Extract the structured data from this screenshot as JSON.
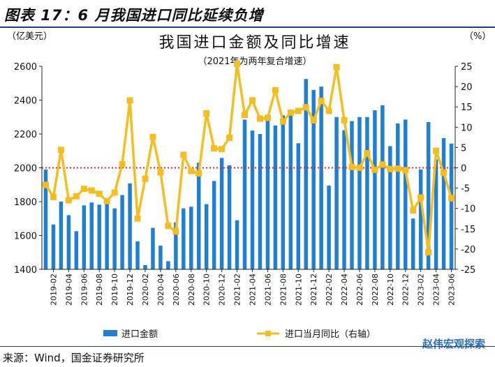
{
  "figure_label": "图表 17：6 月我国进口同比延续负增",
  "source_text": "来源：Wind，国金证券研究所",
  "watermark_text": "赵伟宏观探索",
  "colors": {
    "bar": "#1f7fd4",
    "line": "#f5bd1f",
    "zero_line": "#e0201a",
    "frame": "#1a3f7a"
  },
  "chart_data": {
    "type": "bar+line",
    "title": "我国进口金额及同比增速",
    "subtitle": "（2021年为两年复合增速）",
    "y_left_label": "（亿美元）",
    "y_right_label": "（%）",
    "y_left_lim": [
      1400,
      2600
    ],
    "y_left_ticks": [
      1400,
      1600,
      1800,
      2000,
      2200,
      2400,
      2600
    ],
    "y_right_lim": [
      -25,
      25
    ],
    "y_right_ticks": [
      25,
      20,
      15,
      10,
      5,
      0,
      -5,
      -10,
      -15,
      -20,
      -25
    ],
    "x_ticks": [
      "2019-02",
      "2019-04",
      "2019-06",
      "2019-08",
      "2019-10",
      "2019-12",
      "2020-02",
      "2020-04",
      "2020-06",
      "2020-08",
      "2020-10",
      "2020-12",
      "2021-02",
      "2021-04",
      "2021-06",
      "2021-08",
      "2021-10",
      "2021-12",
      "2022-02",
      "2022-04",
      "2022-06",
      "2022-08",
      "2022-10",
      "2022-12",
      "2023-02",
      "2023-04",
      "2023-06"
    ],
    "categories": [
      "2019-01",
      "2019-02",
      "2019-03",
      "2019-04",
      "2019-05",
      "2019-06",
      "2019-07",
      "2019-08",
      "2019-09",
      "2019-10",
      "2019-11",
      "2019-12",
      "2020-01",
      "2020-02",
      "2020-03",
      "2020-04",
      "2020-05",
      "2020-06",
      "2020-07",
      "2020-08",
      "2020-09",
      "2020-10",
      "2020-11",
      "2020-12",
      "2021-01",
      "2021-02",
      "2021-03",
      "2021-04",
      "2021-05",
      "2021-06",
      "2021-07",
      "2021-08",
      "2021-09",
      "2021-10",
      "2021-11",
      "2021-12",
      "2022-01",
      "2022-02",
      "2022-03",
      "2022-04",
      "2022-05",
      "2022-06",
      "2022-07",
      "2022-08",
      "2022-09",
      "2022-10",
      "2022-11",
      "2022-12",
      "2023-01",
      "2023-02",
      "2023-03",
      "2023-04",
      "2023-05",
      "2023-06"
    ],
    "series": [
      {
        "name": "进口金额",
        "axis": "left",
        "kind": "bar",
        "values": [
          1990,
          1665,
          1800,
          1720,
          1625,
          1778,
          1795,
          1782,
          1808,
          1760,
          1839,
          1908,
          1565,
          1425,
          1645,
          1540,
          1448,
          1678,
          1760,
          1770,
          2030,
          1785,
          1922,
          2058,
          2015,
          1690,
          2285,
          2220,
          2200,
          2300,
          2250,
          2310,
          2320,
          2145,
          2525,
          2460,
          2480,
          1895,
          2300,
          2222,
          2276,
          2300,
          2300,
          2340,
          2370,
          2128,
          2262,
          2285,
          1700,
          1990,
          2270,
          2050,
          2175,
          2143
        ]
      },
      {
        "name": "进口当月同比（右轴）",
        "axis": "right",
        "kind": "line",
        "values": [
          -4.2,
          -7.2,
          4.4,
          -8.0,
          -7.0,
          -5.2,
          -5.6,
          -6.4,
          -8.2,
          -6.1,
          0.9,
          16.6,
          -12.5,
          -2.7,
          7.6,
          -1.1,
          -14.3,
          -15.7,
          3.2,
          -0.8,
          -1.4,
          13.4,
          4.8,
          4.6,
          7.4,
          25.6,
          13.0,
          16.6,
          12.1,
          12.3,
          19.1,
          11.4,
          13.6,
          14.0,
          14.9,
          11.7,
          16.5,
          14.0,
          24.8,
          11.7,
          0.2,
          0.0,
          3.6,
          -0.5,
          0.8,
          -0.3,
          -0.2,
          -0.6,
          -10.5,
          -7.3,
          -20.8,
          4.2,
          -1.2,
          -7.5
        ]
      }
    ],
    "reference_line": {
      "axis": "right",
      "value": 0,
      "style": "dotted"
    },
    "legend": {
      "placement": "bottom",
      "entries": [
        "进口金额",
        "进口当月同比（右轴）"
      ]
    }
  }
}
